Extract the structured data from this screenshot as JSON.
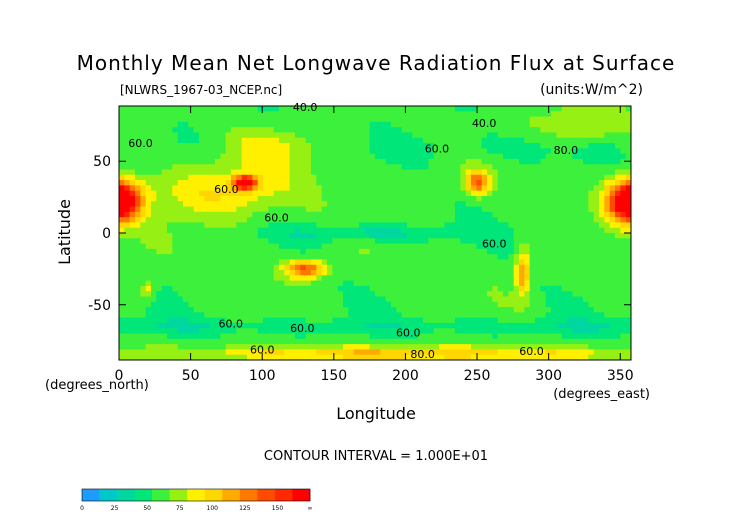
{
  "chart_data": {
    "type": "heatmap",
    "title": "Monthly Mean Net Longwave Radiation Flux at Surface",
    "file_label": "[NLWRS_1967-03_NCEP.nc]",
    "units_label": "(units:W/m^2)",
    "xlabel": "Longitude",
    "ylabel": "Latitude",
    "x_unit_label": "(degrees_east)",
    "y_unit_label": "(degrees_north)",
    "xlim": [
      0,
      357.5
    ],
    "ylim": [
      -88.5,
      88.5
    ],
    "x_ticks": [
      0,
      50,
      100,
      150,
      200,
      250,
      300,
      350
    ],
    "y_ticks": [
      50,
      0,
      -50
    ],
    "contour_interval_text": "CONTOUR INTERVAL = 1.000E+01",
    "contour_labels": [
      {
        "text": "60.0",
        "lon": 15,
        "lat": 60
      },
      {
        "text": "60.0",
        "lon": 75,
        "lat": 28
      },
      {
        "text": "40.0",
        "lon": 130,
        "lat": 85
      },
      {
        "text": "60.0",
        "lon": 110,
        "lat": 8
      },
      {
        "text": "40.0",
        "lon": 255,
        "lat": 74
      },
      {
        "text": "60.0",
        "lon": 222,
        "lat": 56
      },
      {
        "text": "80.0",
        "lon": 312,
        "lat": 55
      },
      {
        "text": "60.0",
        "lon": 262,
        "lat": -10
      },
      {
        "text": "60.0",
        "lon": 78,
        "lat": -66
      },
      {
        "text": "60.0",
        "lon": 128,
        "lat": -69
      },
      {
        "text": "60.0",
        "lon": 202,
        "lat": -72
      },
      {
        "text": "80.0",
        "lon": 212,
        "lat": -87
      },
      {
        "text": "60.0",
        "lon": 100,
        "lat": -84
      },
      {
        "text": "60.0",
        "lon": 288,
        "lat": -85
      }
    ],
    "colorbar": {
      "tick_labels": [
        "0",
        "25",
        "50",
        "75",
        "100",
        "125",
        "150",
        "∞"
      ],
      "bins": [
        {
          "from": 0,
          "to": 12.5,
          "color": "#1e9bff"
        },
        {
          "from": 12.5,
          "to": 25,
          "color": "#00c8c8"
        },
        {
          "from": 25,
          "to": 37.5,
          "color": "#00d7a0"
        },
        {
          "from": 37.5,
          "to": 50,
          "color": "#00e678"
        },
        {
          "from": 50,
          "to": 62.5,
          "color": "#3cf03c"
        },
        {
          "from": 62.5,
          "to": 75,
          "color": "#96f014"
        },
        {
          "from": 75,
          "to": 87.5,
          "color": "#fff000"
        },
        {
          "from": 87.5,
          "to": 100,
          "color": "#ffd700"
        },
        {
          "from": 100,
          "to": 112.5,
          "color": "#ffaa00"
        },
        {
          "from": 112.5,
          "to": 125,
          "color": "#ff7800"
        },
        {
          "from": 125,
          "to": 137.5,
          "color": "#ff4b00"
        },
        {
          "from": 137.5,
          "to": 150,
          "color": "#ff2800"
        },
        {
          "from": 150,
          "to": 1000000000.0,
          "color": "#ff0000"
        }
      ]
    },
    "field": {
      "background_value": 55,
      "features": [
        {
          "lon": 3,
          "lat": 22,
          "rx": 14,
          "ry": 14,
          "value": 85
        },
        {
          "lon": 353,
          "lat": 22,
          "rx": 14,
          "ry": 14,
          "value": 85
        },
        {
          "lon": 75,
          "lat": 30,
          "rx": 55,
          "ry": 20,
          "value": 28
        },
        {
          "lon": 88,
          "lat": 35,
          "rx": 8,
          "ry": 5,
          "value": 110
        },
        {
          "lon": 105,
          "lat": 60,
          "rx": 30,
          "ry": 12,
          "value": 20
        },
        {
          "lon": 60,
          "lat": 25,
          "rx": 40,
          "ry": 10,
          "value": 5
        },
        {
          "lon": 20,
          "lat": 32,
          "rx": 14,
          "ry": 8,
          "value": 5
        },
        {
          "lon": 250,
          "lat": 35,
          "rx": 8,
          "ry": 8,
          "value": 70
        },
        {
          "lon": 325,
          "lat": 75,
          "rx": 28,
          "ry": 14,
          "value": 25
        },
        {
          "lon": 130,
          "lat": -25,
          "rx": 14,
          "ry": 6,
          "value": 75
        },
        {
          "lon": 282,
          "lat": -28,
          "rx": 5,
          "ry": 15,
          "value": 60
        },
        {
          "lon": 20,
          "lat": -40,
          "rx": 5,
          "ry": 6,
          "value": 30
        },
        {
          "lon": 175,
          "lat": 0,
          "rx": 60,
          "ry": 6,
          "value": -25
        },
        {
          "lon": 0,
          "lat": -65,
          "rx": 360,
          "ry": 6,
          "value": -15
        },
        {
          "lon": 270,
          "lat": 60,
          "rx": 80,
          "ry": 10,
          "value": -10
        },
        {
          "lon": 200,
          "lat": -84,
          "rx": 160,
          "ry": 5,
          "value": 45
        }
      ]
    }
  }
}
